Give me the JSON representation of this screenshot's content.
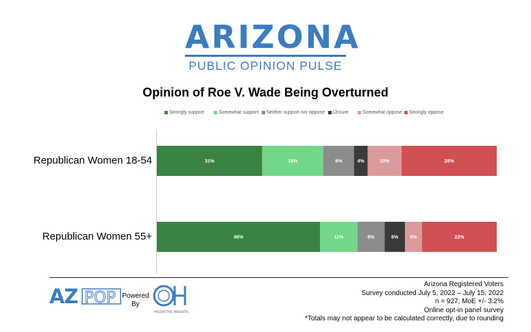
{
  "header": {
    "logo_title": "ARIZONA",
    "logo_subtitle": "PUBLIC OPINION PULSE"
  },
  "colors": {
    "brand_blue": "#3b7cc2",
    "strongly_support": "#3a8343",
    "somewhat_support": "#72d788",
    "neither": "#8c8c8c",
    "unsure": "#3a3a3a",
    "somewhat_oppose": "#dc9a9c",
    "strongly_oppose": "#d05053"
  },
  "chart_data": {
    "type": "bar",
    "orientation": "horizontal",
    "stacked": true,
    "title": "Opinion of Roe V. Wade Being Overturned",
    "categories": [
      "Republican Women 18-54",
      "Republican Women 55+"
    ],
    "legend_position": "top",
    "series": [
      {
        "name": "Strongly support",
        "values": [
          31,
          48
        ],
        "color": "#3a8343"
      },
      {
        "name": "Somewhat support",
        "values": [
          18,
          11
        ],
        "color": "#72d788"
      },
      {
        "name": "Neither support nor oppose",
        "values": [
          9,
          8
        ],
        "color": "#8c8c8c"
      },
      {
        "name": "Unsure",
        "values": [
          4,
          6
        ],
        "color": "#3a3a3a"
      },
      {
        "name": "Somewhat oppose",
        "values": [
          10,
          5
        ],
        "color": "#dc9a9c"
      },
      {
        "name": "Strongly oppose",
        "values": [
          28,
          22
        ],
        "color": "#d05053"
      }
    ],
    "value_suffix": "%",
    "grid": false
  },
  "footer": {
    "azpop_logo": "AZPOP",
    "powered_by": [
      "Powered",
      "By"
    ],
    "partner_logo_text": "PREDICTIVE INSIGHTS",
    "notes": [
      "Arizona Registered Voters",
      "Survey conducted July 5, 2022 – July 15, 2022",
      "n = 927, MoE +/- 3.2%",
      "Online opt-in panel survey",
      "*Totals may not appear to be calculated correctly, due to rounding"
    ]
  }
}
